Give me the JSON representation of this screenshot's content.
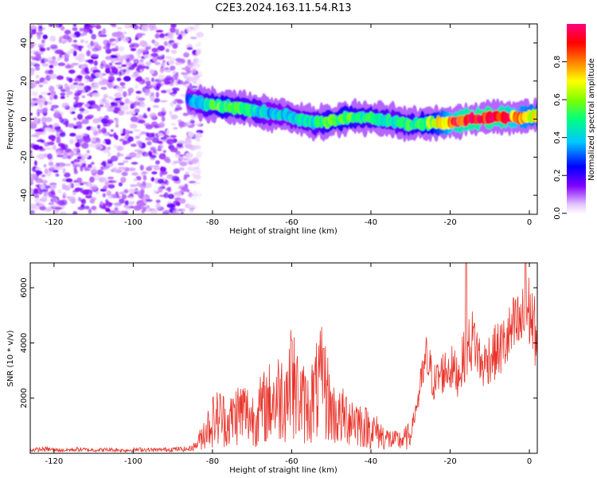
{
  "title": "C2E3.2024.163.11.54.R13",
  "chart_data": [
    {
      "type": "heatmap",
      "xlabel": "Height of straight line (km)",
      "ylabel": "Frequency (Hz)",
      "xlim": [
        -126,
        2
      ],
      "ylim": [
        -50,
        50
      ],
      "xticks": [
        -120,
        -100,
        -80,
        -60,
        -40,
        -20,
        0
      ],
      "yticks": [
        -40,
        -20,
        0,
        20,
        40
      ],
      "colorbar": {
        "label": "Normalized spectral amplitude",
        "range": [
          0,
          1
        ],
        "ticks": [
          0.0,
          0.2,
          0.4,
          0.6,
          0.8
        ],
        "colormap": [
          "#ffffff",
          "#d8a8ff",
          "#8000ff",
          "#0000ff",
          "#00c8ff",
          "#00ff80",
          "#80ff00",
          "#ffff00",
          "#ff8000",
          "#ff0000",
          "#ff0080"
        ]
      },
      "noise_region": {
        "x_range": [
          -126,
          -83
        ],
        "y_range": [
          -50,
          50
        ],
        "typical_amplitude": 0.15
      },
      "signal_ridge": {
        "x": [
          -86,
          -82,
          -78,
          -74,
          -70,
          -66,
          -62,
          -58,
          -54,
          -50,
          -46,
          -42,
          -38,
          -34,
          -30,
          -26,
          -22,
          -18,
          -14,
          -10,
          -6,
          -2,
          2
        ],
        "frequency_hz": [
          10,
          8,
          7,
          6,
          5,
          3,
          2,
          0,
          -2,
          -1,
          1,
          1,
          0,
          -1,
          -3,
          -2,
          -2,
          -1,
          0,
          1,
          1,
          1,
          2
        ],
        "amplitude": [
          0.35,
          0.45,
          0.55,
          0.5,
          0.5,
          0.4,
          0.4,
          0.45,
          0.45,
          0.55,
          0.55,
          0.5,
          0.5,
          0.45,
          0.5,
          0.55,
          0.7,
          0.9,
          0.95,
          0.95,
          0.9,
          0.75,
          0.7
        ]
      }
    },
    {
      "type": "line",
      "xlabel": "Height of straight line (km)",
      "ylabel": "SNR (10 * v/v)",
      "xlim": [
        -126,
        2
      ],
      "ylim": [
        0,
        6900
      ],
      "xticks": [
        -120,
        -100,
        -80,
        -60,
        -40,
        -20,
        0
      ],
      "yticks": [
        2000,
        4000,
        6000
      ],
      "color": "#e8352b",
      "series": [
        {
          "x": [
            -126,
            -122,
            -118,
            -114,
            -110,
            -106,
            -102,
            -98,
            -94,
            -90,
            -86,
            -84,
            -82,
            -80,
            -78,
            -76,
            -74,
            -72,
            -70,
            -68,
            -66,
            -64,
            -62,
            -60,
            -58,
            -56,
            -54,
            -52,
            -50,
            -48,
            -46,
            -44,
            -42,
            -40,
            -38,
            -36,
            -34,
            -32,
            -30,
            -28,
            -26,
            -24,
            -22,
            -20,
            -18,
            -16,
            -14,
            -12,
            -10,
            -8,
            -6,
            -4,
            -2,
            0,
            2
          ],
          "values": [
            120,
            150,
            110,
            140,
            120,
            130,
            110,
            140,
            120,
            150,
            150,
            300,
            900,
            1300,
            1500,
            1200,
            1600,
            1700,
            1400,
            1700,
            2000,
            2200,
            2400,
            2800,
            2200,
            1800,
            2400,
            2900,
            1700,
            1400,
            1500,
            1400,
            1100,
            1000,
            800,
            600,
            500,
            550,
            700,
            2100,
            3500,
            2600,
            3000,
            3200,
            2900,
            3800,
            4300,
            3200,
            3600,
            3800,
            4100,
            4600,
            4800,
            5300,
            4200
          ],
          "peaks": [
            {
              "x": -60,
              "y": 4100
            },
            {
              "x": -52,
              "y": 3800
            },
            {
              "x": -16,
              "y": 6900
            },
            {
              "x": -1,
              "y": 6900
            }
          ]
        }
      ]
    }
  ]
}
